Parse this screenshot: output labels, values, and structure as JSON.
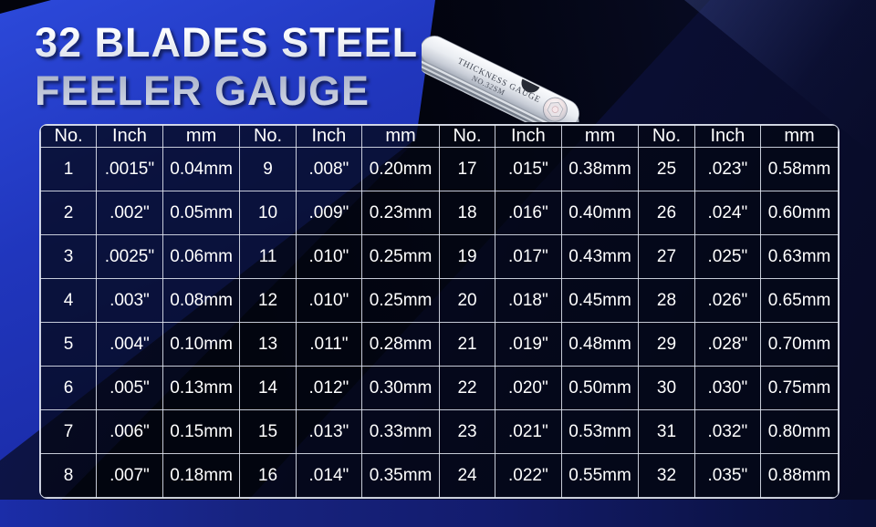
{
  "page": {
    "title_line1": "32 BLADES STEEL",
    "title_line2": "FEELER GAUGE"
  },
  "gauge": {
    "engraving_line1": "THICKNESS GAUGE",
    "engraving_line2": "NO.32SM"
  },
  "colors": {
    "accent_blue": "#1d2fae",
    "background_dark": "#070a23",
    "shard_black": "#020308",
    "table_border": "#e0e5f0",
    "table_cell_bg": "#05081c",
    "text": "#ffffff",
    "title_metal_light": "#fdfefe",
    "title_metal_dark": "#aab3ca"
  },
  "table": {
    "header_groups": [
      [
        "No.",
        "Inch",
        "mm"
      ],
      [
        "No.",
        "Inch",
        "mm"
      ],
      [
        "No.",
        "Inch",
        "mm"
      ],
      [
        "No.",
        "Inch",
        "mm"
      ]
    ],
    "rows_per_group": 8
  },
  "chart_data": {
    "type": "table",
    "title": "32 Blades Steel Feeler Gauge",
    "columns": [
      "No.",
      "Inch",
      "mm"
    ],
    "layout": "4 column-groups of 8 blades each",
    "rows": [
      [
        "1",
        ".0015\"",
        "0.04mm"
      ],
      [
        "2",
        ".002\"",
        "0.05mm"
      ],
      [
        "3",
        ".0025\"",
        "0.06mm"
      ],
      [
        "4",
        ".003\"",
        "0.08mm"
      ],
      [
        "5",
        ".004\"",
        "0.10mm"
      ],
      [
        "6",
        ".005\"",
        "0.13mm"
      ],
      [
        "7",
        ".006\"",
        "0.15mm"
      ],
      [
        "8",
        ".007\"",
        "0.18mm"
      ],
      [
        "9",
        ".008\"",
        "0.20mm"
      ],
      [
        "10",
        ".009\"",
        "0.23mm"
      ],
      [
        "11",
        ".010\"",
        "0.25mm"
      ],
      [
        "12",
        ".010\"",
        "0.25mm"
      ],
      [
        "13",
        ".011\"",
        "0.28mm"
      ],
      [
        "14",
        ".012\"",
        "0.30mm"
      ],
      [
        "15",
        ".013\"",
        "0.33mm"
      ],
      [
        "16",
        ".014\"",
        "0.35mm"
      ],
      [
        "17",
        ".015\"",
        "0.38mm"
      ],
      [
        "18",
        ".016\"",
        "0.40mm"
      ],
      [
        "19",
        ".017\"",
        "0.43mm"
      ],
      [
        "20",
        ".018\"",
        "0.45mm"
      ],
      [
        "21",
        ".019\"",
        "0.48mm"
      ],
      [
        "22",
        ".020\"",
        "0.50mm"
      ],
      [
        "23",
        ".021\"",
        "0.53mm"
      ],
      [
        "24",
        ".022\"",
        "0.55mm"
      ],
      [
        "25",
        ".023\"",
        "0.58mm"
      ],
      [
        "26",
        ".024\"",
        "0.60mm"
      ],
      [
        "27",
        ".025\"",
        "0.63mm"
      ],
      [
        "28",
        ".026\"",
        "0.65mm"
      ],
      [
        "29",
        ".028\"",
        "0.70mm"
      ],
      [
        "30",
        ".030\"",
        "0.75mm"
      ],
      [
        "31",
        ".032\"",
        "0.80mm"
      ],
      [
        "32",
        ".035\"",
        "0.88mm"
      ]
    ]
  }
}
